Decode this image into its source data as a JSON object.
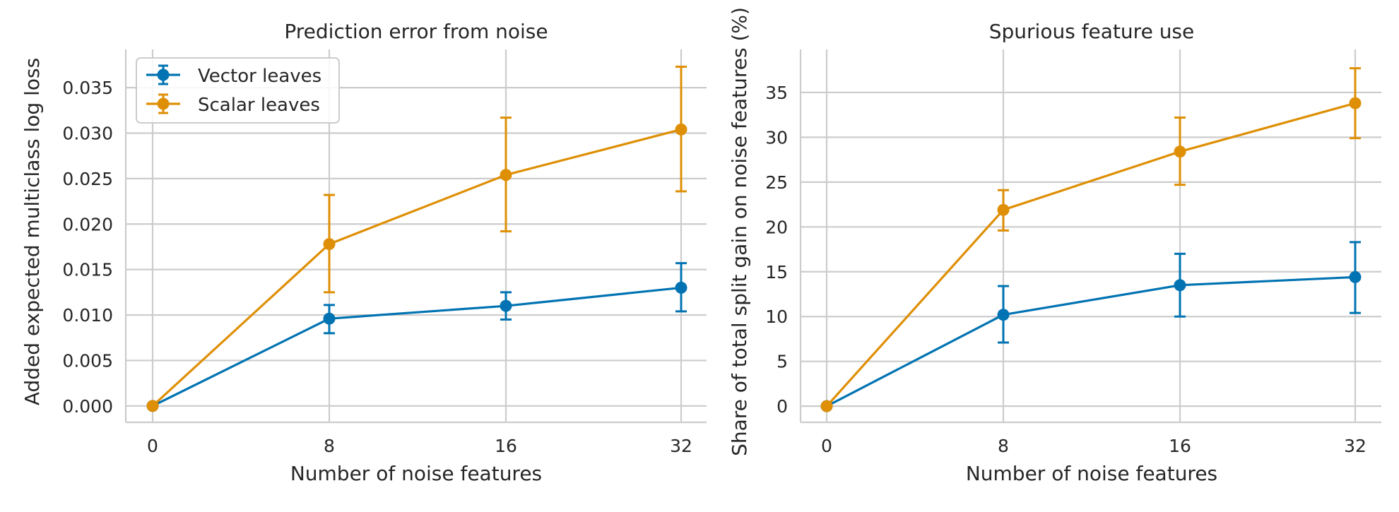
{
  "colors": {
    "vector": "#0173b2",
    "scalar": "#de8f05"
  },
  "legend": {
    "placement": "top-left",
    "entries": [
      {
        "series": "vector",
        "label": "Vector leaves"
      },
      {
        "series": "scalar",
        "label": "Scalar leaves"
      }
    ]
  },
  "chart_data": [
    {
      "type": "line",
      "title": "Prediction error from noise",
      "xlabel": "Number of noise features",
      "ylabel": "Added expected multiclass log loss",
      "x_categories": [
        "0",
        "8",
        "16",
        "32"
      ],
      "ylim": [
        -0.0018,
        0.0392
      ],
      "yticks": [
        0,
        0.005,
        0.01,
        0.015,
        0.02,
        0.025,
        0.03,
        0.035
      ],
      "ytick_labels": [
        "0.000",
        "0.005",
        "0.010",
        "0.015",
        "0.020",
        "0.025",
        "0.030",
        "0.035"
      ],
      "grid": true,
      "series": [
        {
          "name": "Vector leaves",
          "key": "vector",
          "values": [
            0.0,
            0.0096,
            0.011,
            0.013
          ],
          "err_low": [
            0.0,
            0.008,
            0.0095,
            0.0104
          ],
          "err_high": [
            0.0,
            0.0111,
            0.0125,
            0.0157
          ]
        },
        {
          "name": "Scalar leaves",
          "key": "scalar",
          "values": [
            0.0,
            0.0178,
            0.0254,
            0.0304
          ],
          "err_low": [
            0.0,
            0.0125,
            0.0192,
            0.0236
          ],
          "err_high": [
            0.0,
            0.0232,
            0.0317,
            0.0373
          ]
        }
      ]
    },
    {
      "type": "line",
      "title": "Spurious feature use",
      "xlabel": "Number of noise features",
      "ylabel": "Share of total split gain on noise features (%)",
      "x_categories": [
        "0",
        "8",
        "16",
        "32"
      ],
      "ylim": [
        -1.8,
        39.8
      ],
      "yticks": [
        0,
        5,
        10,
        15,
        20,
        25,
        30,
        35
      ],
      "ytick_labels": [
        "0",
        "5",
        "10",
        "15",
        "20",
        "25",
        "30",
        "35"
      ],
      "grid": true,
      "series": [
        {
          "name": "Vector leaves",
          "key": "vector",
          "values": [
            0.0,
            10.2,
            13.5,
            14.4
          ],
          "err_low": [
            0.0,
            7.1,
            10.0,
            10.4
          ],
          "err_high": [
            0.0,
            13.4,
            17.0,
            18.3
          ]
        },
        {
          "name": "Scalar leaves",
          "key": "scalar",
          "values": [
            0.0,
            21.9,
            28.4,
            33.8
          ],
          "err_low": [
            0.0,
            19.6,
            24.7,
            29.9
          ],
          "err_high": [
            0.0,
            24.1,
            32.2,
            37.7
          ]
        }
      ]
    }
  ]
}
